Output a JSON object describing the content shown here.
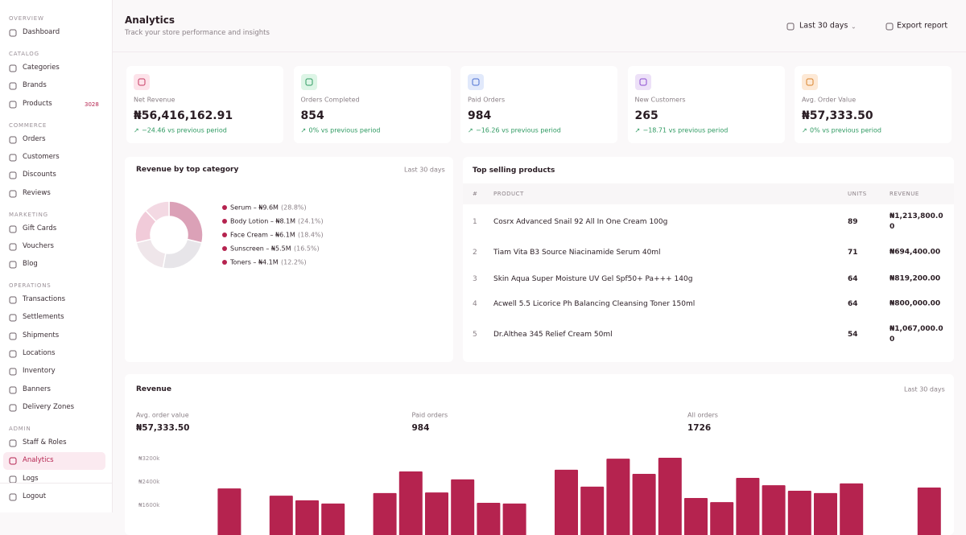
{
  "sidebar": {
    "sections": [
      {
        "title": "OVERVIEW",
        "items": [
          {
            "label": "Dashboard"
          }
        ]
      },
      {
        "title": "CATALOG",
        "items": [
          {
            "label": "Categories"
          },
          {
            "label": "Brands"
          },
          {
            "label": "Products",
            "badge": "3028"
          }
        ]
      },
      {
        "title": "COMMERCE",
        "items": [
          {
            "label": "Orders"
          },
          {
            "label": "Customers"
          },
          {
            "label": "Discounts"
          },
          {
            "label": "Reviews"
          }
        ]
      },
      {
        "title": "MARKETING",
        "items": [
          {
            "label": "Gift Cards"
          },
          {
            "label": "Vouchers"
          },
          {
            "label": "Blog"
          }
        ]
      },
      {
        "title": "OPERATIONS",
        "items": [
          {
            "label": "Transactions"
          },
          {
            "label": "Settlements"
          },
          {
            "label": "Shipments"
          },
          {
            "label": "Locations"
          },
          {
            "label": "Inventory"
          },
          {
            "label": "Banners"
          },
          {
            "label": "Delivery Zones"
          }
        ]
      },
      {
        "title": "ADMIN",
        "items": [
          {
            "label": "Staff & Roles"
          },
          {
            "label": "Analytics",
            "active": true
          },
          {
            "label": "Logs"
          }
        ]
      }
    ],
    "footer": "Logout"
  },
  "header": {
    "title": "Analytics",
    "subtitle": "Track your store performance and insights",
    "range": "Last 30 days",
    "export": "Export report"
  },
  "stats": [
    {
      "label": "Net Revenue",
      "value": "₦56,416,162.91",
      "change": "−24.46 vs previous period"
    },
    {
      "label": "Orders Completed",
      "value": "854",
      "change": "0% vs previous period"
    },
    {
      "label": "Paid Orders",
      "value": "984",
      "change": "−16.26 vs previous period"
    },
    {
      "label": "New Customers",
      "value": "265",
      "change": "−18.71 vs previous period"
    },
    {
      "label": "Avg. Order Value",
      "value": "₦57,333.50",
      "change": "0% vs previous period"
    }
  ],
  "top_products": {
    "title": "Top selling products",
    "columns": [
      "#",
      "PRODUCT",
      "UNITS",
      "REVENUE"
    ],
    "rows": [
      [
        "1",
        "Cosrx Advanced Snail 92 All In One Cream 100g",
        "89",
        "₦1,213,800.00"
      ],
      [
        "2",
        "Tiam Vita B3 Source Niacinamide Serum 40ml",
        "71",
        "₦694,400.00"
      ],
      [
        "3",
        "Skin Aqua Super Moisture UV Gel Spf50+ Pa+++ 140g",
        "64",
        "₦819,200.00"
      ],
      [
        "4",
        "Acwell 5.5 Licorice Ph Balancing Cleansing Toner 150ml",
        "64",
        "₦800,000.00"
      ],
      [
        "5",
        "Dr.Althea 345 Relief Cream 50ml",
        "54",
        "₦1,067,000.00"
      ]
    ]
  },
  "chart_data": [
    {
      "type": "pie",
      "title": "Revenue by top category",
      "subtitle": "Last 30 days",
      "categories": [
        "Serum – ₦9.6M",
        "Body Lotion – ₦8.1M",
        "Face Cream – ₦6.1M",
        "Sunscreen – ₦5.5M",
        "Toners – ₦4.1M"
      ],
      "values": [
        28.8,
        24.1,
        18.4,
        16.5,
        12.2
      ],
      "value_labels": [
        "(28.8%)",
        "(24.1%)",
        "(18.4%)",
        "(16.5%)",
        "(12.2%)"
      ],
      "colors": [
        "#dba1b7",
        "#e7e5e9",
        "#efe6ea",
        "#f1cbd9",
        "#f3d9e3"
      ],
      "legend_color": "#b5234f"
    },
    {
      "type": "bar",
      "title": "Revenue",
      "subtitle": "Last 30 days",
      "summary": [
        {
          "label": "Avg. order value",
          "value": "₦57,333.50"
        },
        {
          "label": "Paid orders",
          "value": "984"
        },
        {
          "label": "All orders",
          "value": "1726"
        }
      ],
      "values": [
        0,
        0,
        2150,
        0,
        1900,
        1740,
        1630,
        0,
        1990,
        2730,
        2010,
        2460,
        1655,
        1630,
        0,
        2790,
        2210,
        3170,
        2650,
        3200,
        1820,
        1680,
        2510,
        2260,
        2070,
        1990,
        2320,
        0,
        0,
        2180
      ],
      "color": "#b5234f",
      "ylim": [
        0,
        3200
      ],
      "yticks": [
        {
          "value": 3200,
          "label": "₦3200k"
        },
        {
          "value": 2400,
          "label": "₦2400k"
        },
        {
          "value": 1600,
          "label": "₦1600k"
        }
      ],
      "grid": false
    }
  ]
}
